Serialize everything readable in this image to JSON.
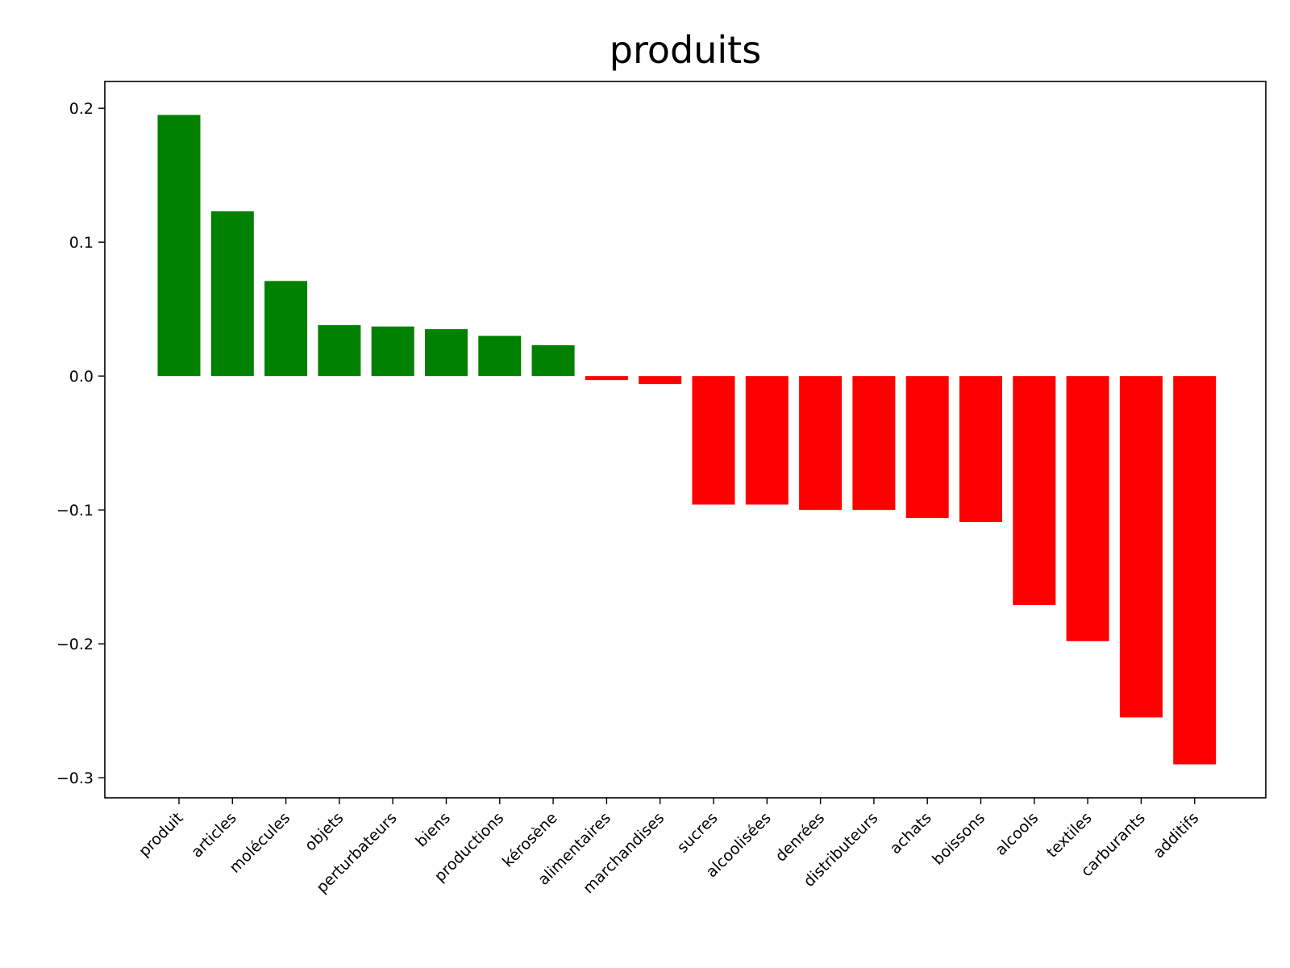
{
  "chart_data": {
    "type": "bar",
    "title": "produits",
    "xlabel": "",
    "ylabel": "",
    "ylim": [
      -0.315,
      0.22
    ],
    "yticks": [
      0.2,
      0.1,
      0.0,
      -0.1,
      -0.2,
      -0.3
    ],
    "ytick_labels": [
      "0.2",
      "0.1",
      "0.0",
      "−0.1",
      "−0.2",
      "−0.3"
    ],
    "grid": false,
    "positive_color": "#008000",
    "negative_color": "#ff0000",
    "categories": [
      "produit",
      "articles",
      "molécules",
      "objets",
      "perturbateurs",
      "biens",
      "productions",
      "kérosène",
      "alimentaires",
      "marchandises",
      "sucres",
      "alcoolisées",
      "denrées",
      "distributeurs",
      "achats",
      "boissons",
      "alcools",
      "textiles",
      "carburants",
      "additifs"
    ],
    "values": [
      0.195,
      0.123,
      0.071,
      0.038,
      0.037,
      0.035,
      0.03,
      0.023,
      -0.003,
      -0.006,
      -0.096,
      -0.096,
      -0.1,
      -0.1,
      -0.106,
      -0.109,
      -0.171,
      -0.198,
      -0.255,
      -0.29
    ]
  }
}
